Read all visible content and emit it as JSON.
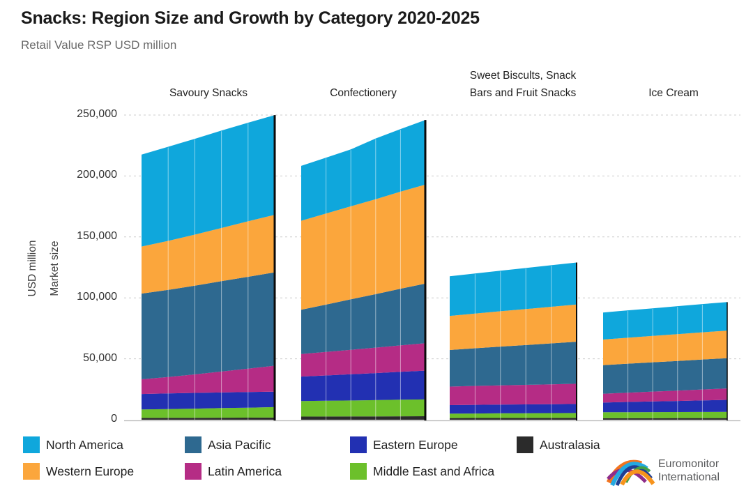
{
  "header": {
    "title": "Snacks: Region Size and Growth by Category 2020-2025",
    "subtitle": "Retail Value RSP USD million"
  },
  "y_axis": {
    "title_lines": [
      "USD million",
      "Market size"
    ],
    "tick_labels": [
      "250,000",
      "200,000",
      "150,000",
      "100,000",
      "50,000",
      "0"
    ],
    "tick_values": [
      250000,
      200000,
      150000,
      100000,
      50000,
      0
    ]
  },
  "legend": {
    "items": [
      {
        "label": "North America",
        "color": "#0FA7DC"
      },
      {
        "label": "Asia Pacific",
        "color": "#2E6990"
      },
      {
        "label": "Eastern Europe",
        "color": "#2230B2"
      },
      {
        "label": "Australasia",
        "color": "#2B2B2B"
      },
      {
        "label": "Western Europe",
        "color": "#FBA63C"
      },
      {
        "label": "Latin America",
        "color": "#B52C85"
      },
      {
        "label": "Middle East and Africa",
        "color": "#6CC02B"
      }
    ]
  },
  "logo": {
    "line1": "Euromonitor",
    "line2": "International"
  },
  "chart_data": {
    "type": "area",
    "stacked": true,
    "title": "Snacks: Region Size and Growth by Category 2020-2025",
    "subtitle": "Retail Value RSP USD million",
    "ylabel": "USD million Market size",
    "ylim": [
      0,
      250000
    ],
    "grid": "horizontal-dashed",
    "legend_position": "bottom",
    "x": [
      2020,
      2021,
      2022,
      2023,
      2024,
      2025
    ],
    "stack_order_bottom_to_top": [
      "Australasia",
      "Middle East and Africa",
      "Eastern Europe",
      "Latin America",
      "Asia Pacific",
      "Western Europe",
      "North America"
    ],
    "series_colors": {
      "North America": "#0FA7DC",
      "Western Europe": "#FBA63C",
      "Asia Pacific": "#2E6990",
      "Latin America": "#B52C85",
      "Eastern Europe": "#2230B2",
      "Middle East and Africa": "#6CC02B",
      "Australasia": "#2B2B2B"
    },
    "panels": [
      {
        "category": "Savoury Snacks",
        "label_lines": [
          "Savoury Snacks"
        ],
        "series": {
          "Australasia": [
            1500,
            1550,
            1600,
            1650,
            1700,
            1750
          ],
          "Middle East and Africa": [
            6900,
            7200,
            7500,
            7900,
            8200,
            8600
          ],
          "Eastern Europe": [
            12700,
            12800,
            12900,
            12800,
            12800,
            12700
          ],
          "Latin America": [
            12100,
            13500,
            15200,
            17200,
            19200,
            21300
          ],
          "Asia Pacific": [
            70300,
            71500,
            72800,
            74100,
            75400,
            76600
          ],
          "Western Europe": [
            38600,
            40200,
            41900,
            43700,
            45500,
            47200
          ],
          "North America": [
            75400,
            77200,
            78600,
            79900,
            80900,
            81800
          ]
        }
      },
      {
        "category": "Confectionery",
        "label_lines": [
          "Confectionery"
        ],
        "series": {
          "Australasia": [
            2600,
            2650,
            2700,
            2750,
            2800,
            2850
          ],
          "Middle East and Africa": [
            12700,
            12900,
            13100,
            13300,
            13600,
            13800
          ],
          "Eastern Europe": [
            20100,
            20800,
            21500,
            22200,
            22900,
            23600
          ],
          "Latin America": [
            18500,
            19300,
            20100,
            20900,
            21700,
            22500
          ],
          "Asia Pacific": [
            36300,
            38800,
            41400,
            43900,
            46500,
            49000
          ],
          "Western Europe": [
            73100,
            74700,
            76300,
            77900,
            79600,
            81200
          ],
          "North America": [
            45000,
            45900,
            46700,
            49800,
            51400,
            53000
          ]
        }
      },
      {
        "category": "Sweet Biscults, Snack Bars and Fruit Snacks",
        "label_lines": [
          "Sweet Biscults, Snack",
          "Bars and Fruit Snacks"
        ],
        "series": {
          "Australasia": [
            1400,
            1420,
            1450,
            1480,
            1500,
            1520
          ],
          "Middle East and Africa": [
            3600,
            3700,
            3800,
            3850,
            3950,
            4000
          ],
          "Eastern Europe": [
            7000,
            7100,
            7150,
            7250,
            7300,
            7400
          ],
          "Latin America": [
            15200,
            15500,
            15800,
            16000,
            16300,
            16600
          ],
          "Asia Pacific": [
            30000,
            30900,
            31800,
            32700,
            33600,
            34500
          ],
          "Western Europe": [
            28000,
            28500,
            29000,
            29500,
            30000,
            30500
          ],
          "North America": [
            32500,
            32900,
            33300,
            33700,
            34100,
            34500
          ]
        }
      },
      {
        "category": "Ice Cream",
        "label_lines": [
          "Ice Cream"
        ],
        "series": {
          "Australasia": [
            1300,
            1320,
            1340,
            1360,
            1380,
            1400
          ],
          "Middle East and Africa": [
            4800,
            4850,
            4900,
            4950,
            4950,
            5000
          ],
          "Eastern Europe": [
            8000,
            8400,
            8800,
            9100,
            9500,
            9900
          ],
          "Latin America": [
            7200,
            7600,
            8100,
            8500,
            9000,
            9400
          ],
          "Asia Pacific": [
            23500,
            23800,
            24000,
            24300,
            24600,
            24800
          ],
          "Western Europe": [
            21000,
            21300,
            21600,
            22000,
            22300,
            22600
          ],
          "North America": [
            22200,
            22500,
            22700,
            23000,
            23200,
            23400
          ]
        }
      }
    ]
  }
}
